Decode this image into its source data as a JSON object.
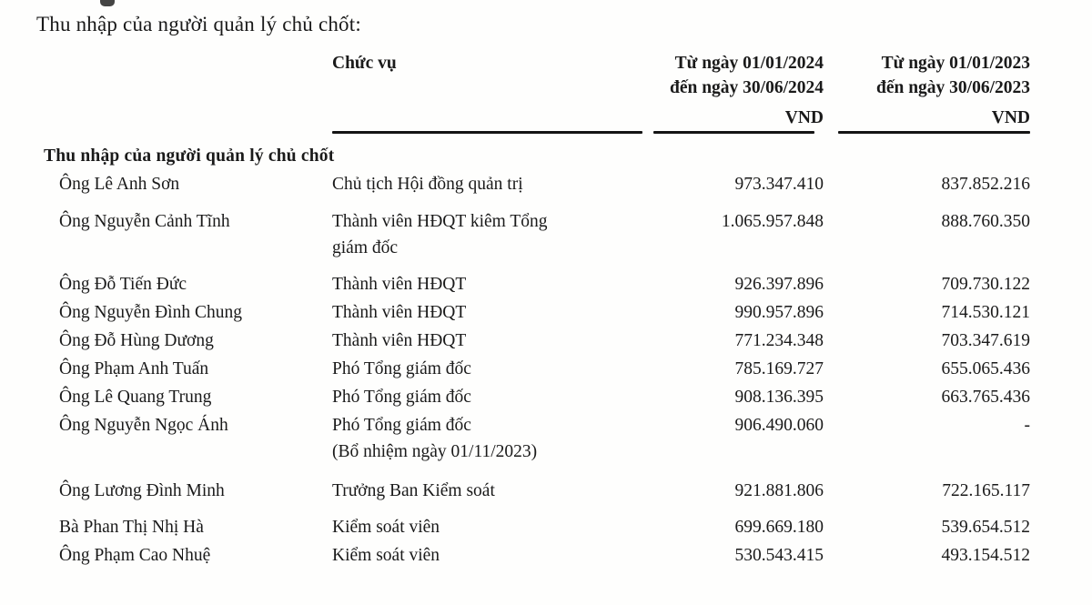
{
  "title": "Thu nhập của người quản lý chủ chốt:",
  "table": {
    "headers": {
      "position": "Chức vụ",
      "period_2024": "Từ ngày 01/01/2024\nđến ngày 30/06/2024",
      "period_2023": "Từ ngày 01/01/2023\nđến ngày 30/06/2023",
      "unit_2024": "VND",
      "unit_2023": "VND"
    },
    "section_header": "Thu nhập của người quản lý chủ chốt",
    "rows": [
      {
        "name": "Ông Lê Anh Sơn",
        "position": "Chủ tịch Hội đồng quản trị",
        "v2024": "973.347.410",
        "v2023": "837.852.216"
      },
      {
        "name": "Ông Nguyễn Cảnh Tĩnh",
        "position": "Thành viên HĐQT kiêm Tổng\ngiám đốc",
        "v2024": "1.065.957.848",
        "v2023": "888.760.350"
      },
      {
        "name": "Ông Đỗ Tiến Đức",
        "position": "Thành viên HĐQT",
        "v2024": "926.397.896",
        "v2023": "709.730.122"
      },
      {
        "name": "Ông Nguyễn Đình Chung",
        "position": "Thành viên HĐQT",
        "v2024": "990.957.896",
        "v2023": "714.530.121"
      },
      {
        "name": "Ông Đỗ Hùng Dương",
        "position": "Thành viên HĐQT",
        "v2024": "771.234.348",
        "v2023": "703.347.619"
      },
      {
        "name": "Ông Phạm Anh Tuấn",
        "position": "Phó Tổng giám đốc",
        "v2024": "785.169.727",
        "v2023": "655.065.436"
      },
      {
        "name": "Ông Lê Quang Trung",
        "position": "Phó Tổng giám đốc",
        "v2024": "908.136.395",
        "v2023": "663.765.436"
      },
      {
        "name": "Ông Nguyễn Ngọc Ánh",
        "position": "Phó Tổng giám đốc\n(Bổ nhiệm ngày 01/11/2023)",
        "v2024": "906.490.060",
        "v2023": "-"
      },
      {
        "name": "Ông Lương Đình Minh",
        "position": "Trưởng Ban Kiểm soát",
        "v2024": "921.881.806",
        "v2023": "722.165.117"
      },
      {
        "name": "Bà Phan Thị Nhị Hà",
        "position": "Kiểm soát viên",
        "v2024": "699.669.180",
        "v2023": "539.654.512"
      },
      {
        "name": "Ông Phạm Cao Nhuệ",
        "position": "Kiểm soát viên",
        "v2024": "530.543.415",
        "v2023": "493.154.512"
      }
    ]
  }
}
